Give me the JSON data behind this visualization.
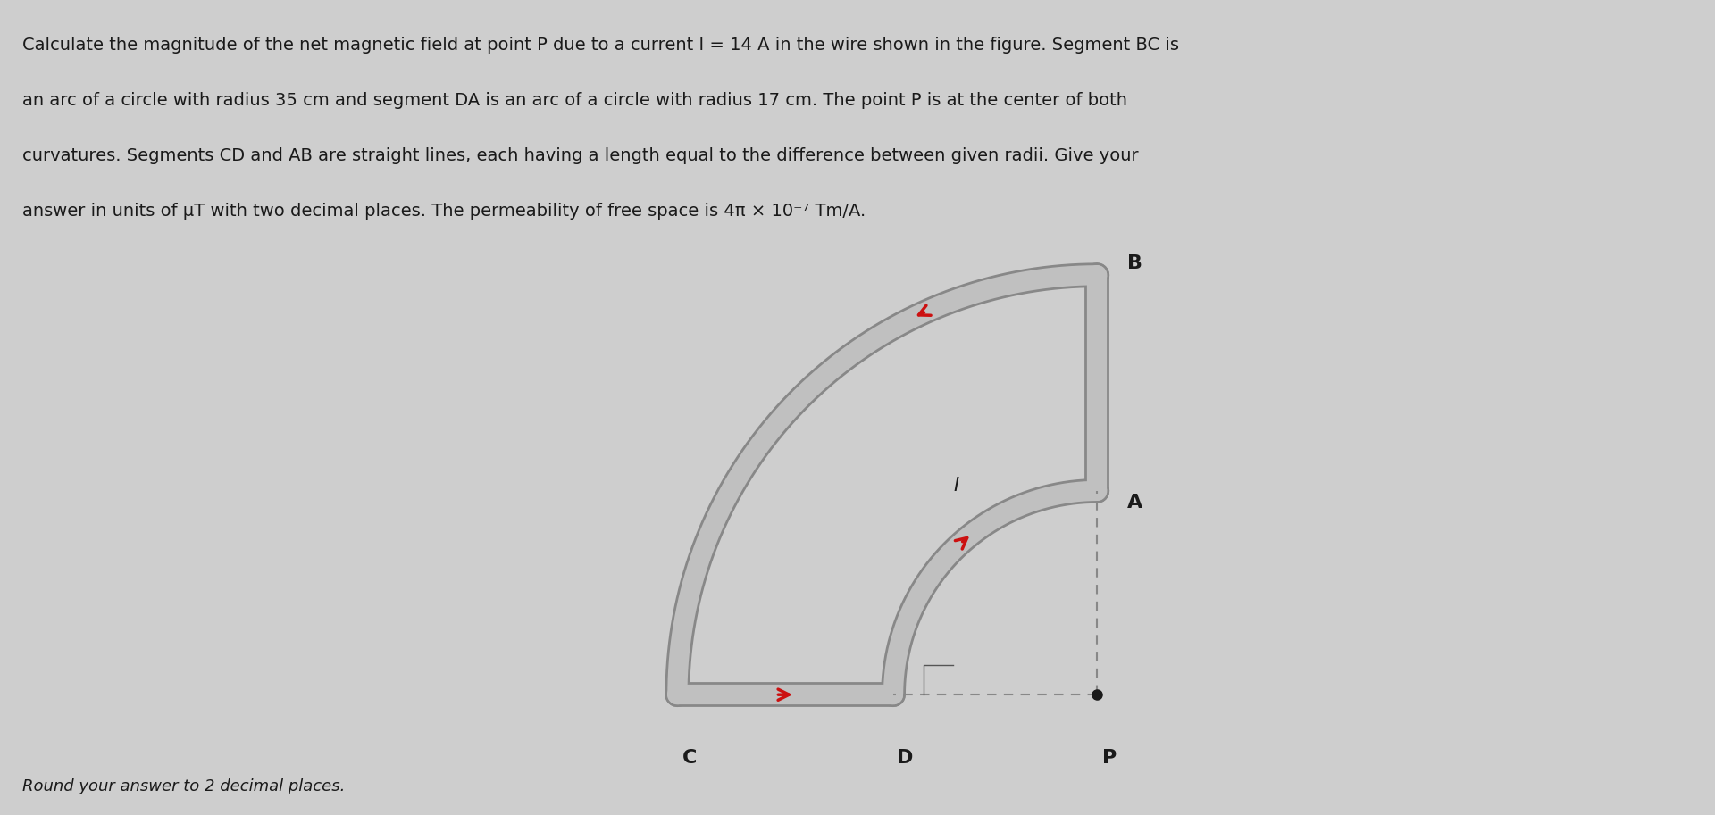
{
  "bg_color": "#cecece",
  "wire_color_light": "#c0c0c0",
  "wire_color_dark": "#888888",
  "arrow_color": "#cc1111",
  "label_color": "#1a1a1a",
  "dashed_color": "#888888",
  "dot_color": "#1a1a1a",
  "r_inner": 17,
  "r_outer": 35,
  "wire_lw": 9,
  "label_fontsize": 15,
  "problem_line1": "Calculate the magnitude of the net magnetic field at point P due to a current I = 14 A in the wire shown in the figure. Segment BC is",
  "problem_line2": "an arc of a circle with radius 35 cm and segment DA is an arc of a circle with radius 17 cm. The point P is at the center of both",
  "problem_line3": "curvatures. Segments CD and AB are straight lines, each having a length equal to the difference between given radii. Give your",
  "problem_line4": "answer in units of μT with two decimal places. The permeability of free space is 4π × 10⁻⁷ Tm/A.",
  "footer_text": "Round your answer to 2 decimal places.",
  "label_B": "B",
  "label_A": "A",
  "label_C": "C",
  "label_D": "D",
  "label_P": "P",
  "label_I": "I"
}
